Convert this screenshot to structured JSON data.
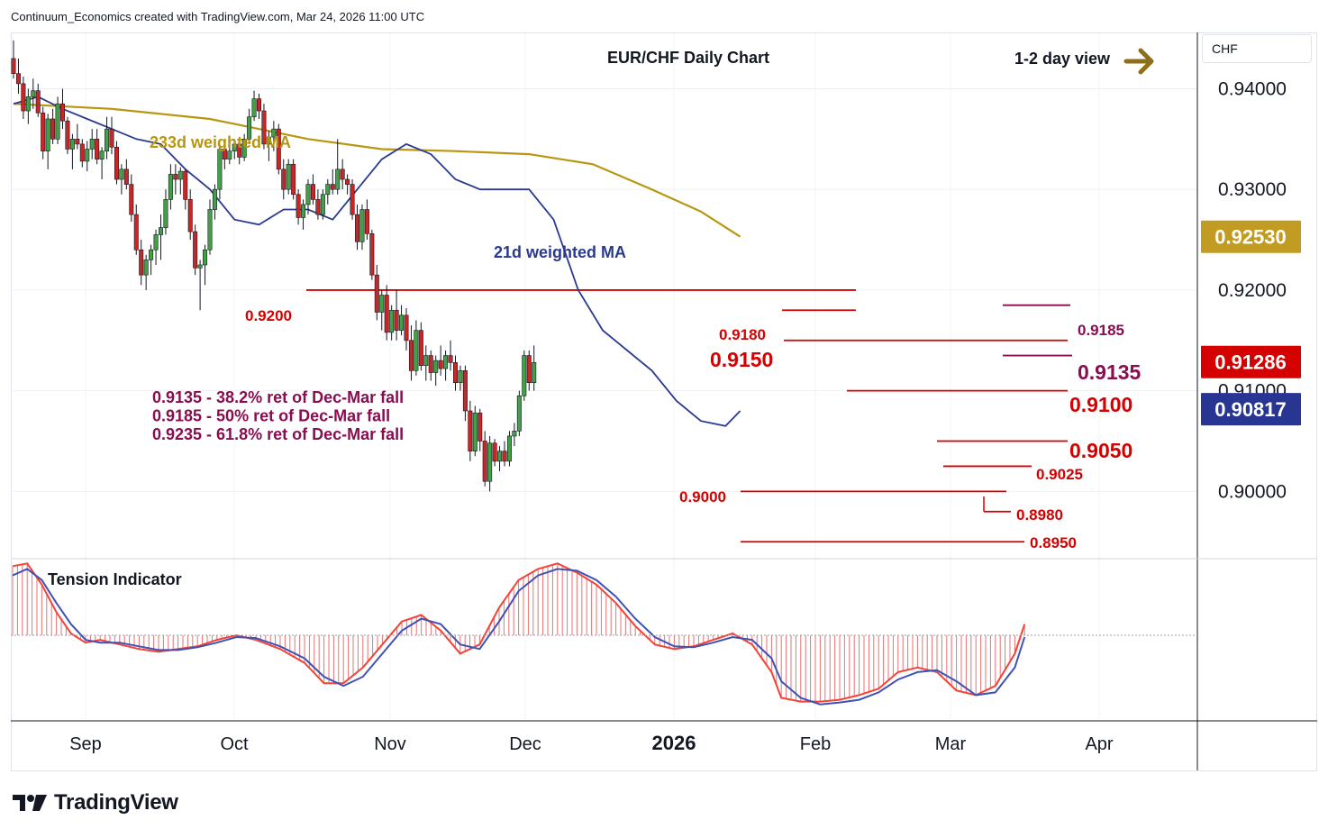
{
  "credit": "Continuum_Economics created with TradingView.com, Mar 24, 2026 11:00 UTC",
  "brand": "TradingView",
  "currency": "CHF",
  "chart_data": {
    "type": "candlestick",
    "title": "EUR/CHF Daily Chart",
    "view_label": "1-2 day view",
    "x_ticks": [
      "Sep",
      "Oct",
      "Nov",
      "Dec",
      "2026",
      "Feb",
      "Mar",
      "Apr"
    ],
    "y_ticks": [
      "0.94000",
      "0.93000",
      "0.92000",
      "0.91000",
      "0.90000"
    ],
    "ylim": [
      0.8935,
      0.9455
    ],
    "price_tags": [
      {
        "label": "0.92530",
        "value": 0.9253,
        "color": "#c19b22"
      },
      {
        "label": "0.91286",
        "value": 0.91286,
        "color": "#d50000"
      },
      {
        "label": "0.90817",
        "value": 0.90817,
        "color": "#283593"
      }
    ],
    "levels": [
      {
        "label": "0.9200",
        "value": 0.92
      },
      {
        "label": "0.9185",
        "value": 0.9185
      },
      {
        "label": "0.9180",
        "value": 0.918
      },
      {
        "label": "0.9150",
        "value": 0.915
      },
      {
        "label": "0.9135",
        "value": 0.9135
      },
      {
        "label": "0.9100",
        "value": 0.91
      },
      {
        "label": "0.9050",
        "value": 0.905
      },
      {
        "label": "0.9025",
        "value": 0.9025
      },
      {
        "label": "0.9000",
        "value": 0.9
      },
      {
        "label": "0.8980",
        "value": 0.898
      },
      {
        "label": "0.8950",
        "value": 0.895
      }
    ],
    "annotations": [
      "0.9135 - 38.2% ret of Dec-Mar fall",
      "0.9185 - 50% ret of Dec-Mar fall",
      "0.9235 - 61.8% ret of Dec-Mar fall"
    ],
    "series_labels": [
      "233d weighted MA",
      "21d weighted MA"
    ],
    "indicator_title": "Tension Indicator",
    "ma233": [
      [
        0,
        0.9385
      ],
      [
        20,
        0.938
      ],
      [
        40,
        0.937
      ],
      [
        60,
        0.935
      ],
      [
        75,
        0.934
      ],
      [
        90,
        0.9338
      ],
      [
        105,
        0.9335
      ],
      [
        118,
        0.9325
      ],
      [
        130,
        0.93
      ],
      [
        140,
        0.9278
      ],
      [
        148,
        0.9253
      ]
    ],
    "ma21": [
      [
        0,
        0.9385
      ],
      [
        5,
        0.9392
      ],
      [
        10,
        0.938
      ],
      [
        15,
        0.937
      ],
      [
        20,
        0.936
      ],
      [
        25,
        0.935
      ],
      [
        30,
        0.9345
      ],
      [
        35,
        0.932
      ],
      [
        40,
        0.93
      ],
      [
        45,
        0.927
      ],
      [
        50,
        0.9265
      ],
      [
        55,
        0.928
      ],
      [
        60,
        0.928
      ],
      [
        65,
        0.927
      ],
      [
        70,
        0.93
      ],
      [
        75,
        0.933
      ],
      [
        80,
        0.9345
      ],
      [
        85,
        0.9335
      ],
      [
        90,
        0.931
      ],
      [
        95,
        0.93
      ],
      [
        100,
        0.93
      ],
      [
        105,
        0.93
      ],
      [
        110,
        0.927
      ],
      [
        115,
        0.92
      ],
      [
        120,
        0.916
      ],
      [
        125,
        0.914
      ],
      [
        130,
        0.912
      ],
      [
        135,
        0.909
      ],
      [
        140,
        0.907
      ],
      [
        145,
        0.9065
      ],
      [
        148,
        0.908
      ]
    ],
    "candles": [
      [
        0.943,
        0.9448,
        0.941,
        0.9415
      ],
      [
        0.9415,
        0.943,
        0.9395,
        0.9405
      ],
      [
        0.9405,
        0.9412,
        0.937,
        0.9378
      ],
      [
        0.9378,
        0.94,
        0.9365,
        0.9392
      ],
      [
        0.9392,
        0.941,
        0.938,
        0.9398
      ],
      [
        0.9398,
        0.9405,
        0.9372,
        0.9376
      ],
      [
        0.9376,
        0.9382,
        0.933,
        0.9338
      ],
      [
        0.9338,
        0.9375,
        0.932,
        0.937
      ],
      [
        0.937,
        0.938,
        0.9345,
        0.935
      ],
      [
        0.935,
        0.9392,
        0.9345,
        0.9385
      ],
      [
        0.9385,
        0.94,
        0.936,
        0.9368
      ],
      [
        0.9368,
        0.9372,
        0.9335,
        0.934
      ],
      [
        0.934,
        0.9355,
        0.932,
        0.935
      ],
      [
        0.935,
        0.9365,
        0.934,
        0.9345
      ],
      [
        0.9345,
        0.935,
        0.9322,
        0.9328
      ],
      [
        0.9328,
        0.9348,
        0.9318,
        0.934
      ],
      [
        0.934,
        0.936,
        0.933,
        0.935
      ],
      [
        0.935,
        0.936,
        0.9325,
        0.933
      ],
      [
        0.933,
        0.9342,
        0.931,
        0.9338
      ],
      [
        0.9338,
        0.9372,
        0.933,
        0.936
      ],
      [
        0.936,
        0.9372,
        0.9335,
        0.9342
      ],
      [
        0.9342,
        0.9348,
        0.9305,
        0.931
      ],
      [
        0.931,
        0.9325,
        0.9295,
        0.932
      ],
      [
        0.932,
        0.933,
        0.93,
        0.9305
      ],
      [
        0.9305,
        0.9315,
        0.9268,
        0.9275
      ],
      [
        0.9275,
        0.9285,
        0.9235,
        0.924
      ],
      [
        0.924,
        0.925,
        0.9205,
        0.9215
      ],
      [
        0.9215,
        0.9235,
        0.92,
        0.923
      ],
      [
        0.923,
        0.9245,
        0.9215,
        0.924
      ],
      [
        0.924,
        0.926,
        0.9225,
        0.9255
      ],
      [
        0.9255,
        0.9275,
        0.923,
        0.9262
      ],
      [
        0.9262,
        0.93,
        0.9255,
        0.929
      ],
      [
        0.929,
        0.9325,
        0.928,
        0.9315
      ],
      [
        0.9315,
        0.9325,
        0.9295,
        0.931
      ],
      [
        0.931,
        0.9322,
        0.9295,
        0.9318
      ],
      [
        0.9318,
        0.932,
        0.928,
        0.929
      ],
      [
        0.929,
        0.93,
        0.925,
        0.9258
      ],
      [
        0.9258,
        0.9265,
        0.9215,
        0.9222
      ],
      [
        0.9222,
        0.923,
        0.918,
        0.9225
      ],
      [
        0.9225,
        0.9245,
        0.9205,
        0.924
      ],
      [
        0.924,
        0.929,
        0.9235,
        0.928
      ],
      [
        0.928,
        0.9305,
        0.927,
        0.93
      ],
      [
        0.93,
        0.9345,
        0.929,
        0.934
      ],
      [
        0.934,
        0.9348,
        0.932,
        0.933
      ],
      [
        0.933,
        0.9345,
        0.9325,
        0.9338
      ],
      [
        0.9338,
        0.935,
        0.933,
        0.9345
      ],
      [
        0.9345,
        0.9348,
        0.9325,
        0.9332
      ],
      [
        0.9332,
        0.9355,
        0.9328,
        0.935
      ],
      [
        0.935,
        0.938,
        0.9345,
        0.9372
      ],
      [
        0.9372,
        0.9398,
        0.9368,
        0.939
      ],
      [
        0.939,
        0.9395,
        0.937,
        0.9378
      ],
      [
        0.9378,
        0.9385,
        0.934,
        0.9345
      ],
      [
        0.9345,
        0.9358,
        0.9328,
        0.9352
      ],
      [
        0.9352,
        0.9368,
        0.9338,
        0.936
      ],
      [
        0.936,
        0.9365,
        0.9315,
        0.932
      ],
      [
        0.932,
        0.933,
        0.929,
        0.93
      ],
      [
        0.93,
        0.933,
        0.9295,
        0.9325
      ],
      [
        0.9325,
        0.933,
        0.929,
        0.9295
      ],
      [
        0.9295,
        0.93,
        0.9265,
        0.9272
      ],
      [
        0.9272,
        0.929,
        0.926,
        0.9285
      ],
      [
        0.9285,
        0.931,
        0.9275,
        0.9305
      ],
      [
        0.9305,
        0.9315,
        0.9285,
        0.929
      ],
      [
        0.929,
        0.93,
        0.927,
        0.9275
      ],
      [
        0.9275,
        0.93,
        0.927,
        0.9295
      ],
      [
        0.9295,
        0.931,
        0.9285,
        0.9305
      ],
      [
        0.9305,
        0.932,
        0.9295,
        0.93
      ],
      [
        0.93,
        0.935,
        0.9295,
        0.932
      ],
      [
        0.932,
        0.933,
        0.93,
        0.931
      ],
      [
        0.931,
        0.9315,
        0.9295,
        0.9305
      ],
      [
        0.9305,
        0.931,
        0.927,
        0.9275
      ],
      [
        0.9275,
        0.9285,
        0.924,
        0.9248
      ],
      [
        0.9248,
        0.9285,
        0.924,
        0.928
      ],
      [
        0.928,
        0.929,
        0.925,
        0.9256
      ],
      [
        0.9256,
        0.926,
        0.921,
        0.9215
      ],
      [
        0.9215,
        0.9225,
        0.917,
        0.9178
      ],
      [
        0.9178,
        0.92,
        0.916,
        0.9195
      ],
      [
        0.9195,
        0.9205,
        0.915,
        0.9158
      ],
      [
        0.9158,
        0.9185,
        0.915,
        0.918
      ],
      [
        0.918,
        0.92,
        0.915,
        0.916
      ],
      [
        0.916,
        0.9185,
        0.9155,
        0.9175
      ],
      [
        0.9175,
        0.9182,
        0.914,
        0.915
      ],
      [
        0.915,
        0.9165,
        0.911,
        0.912
      ],
      [
        0.912,
        0.917,
        0.9115,
        0.916
      ],
      [
        0.916,
        0.9168,
        0.912,
        0.9125
      ],
      [
        0.9125,
        0.9145,
        0.911,
        0.9135
      ],
      [
        0.9135,
        0.914,
        0.911,
        0.9118
      ],
      [
        0.9118,
        0.9135,
        0.9105,
        0.913
      ],
      [
        0.913,
        0.9145,
        0.9115,
        0.9122
      ],
      [
        0.9122,
        0.914,
        0.911,
        0.9135
      ],
      [
        0.9135,
        0.915,
        0.912,
        0.9128
      ],
      [
        0.9128,
        0.9135,
        0.91,
        0.9108
      ],
      [
        0.9108,
        0.9125,
        0.91,
        0.912
      ],
      [
        0.912,
        0.9125,
        0.907,
        0.908
      ],
      [
        0.908,
        0.909,
        0.903,
        0.904
      ],
      [
        0.904,
        0.9085,
        0.9035,
        0.9078
      ],
      [
        0.9078,
        0.9082,
        0.904,
        0.905
      ],
      [
        0.905,
        0.906,
        0.9005,
        0.901
      ],
      [
        0.901,
        0.9055,
        0.9,
        0.9048
      ],
      [
        0.9048,
        0.9052,
        0.9025,
        0.903
      ],
      [
        0.903,
        0.9045,
        0.902,
        0.904
      ],
      [
        0.904,
        0.905,
        0.9025,
        0.903
      ],
      [
        0.903,
        0.906,
        0.9025,
        0.9055
      ],
      [
        0.9055,
        0.9068,
        0.9045,
        0.906
      ],
      [
        0.906,
        0.91,
        0.9055,
        0.9095
      ],
      [
        0.9095,
        0.914,
        0.909,
        0.9135
      ],
      [
        0.9135,
        0.914,
        0.91,
        0.9108
      ],
      [
        0.9108,
        0.9145,
        0.91,
        0.9128
      ]
    ],
    "tension_ylim": [
      -0.9,
      0.9
    ],
    "tension_red": [
      [
        0,
        0.75
      ],
      [
        3,
        0.78
      ],
      [
        6,
        0.55
      ],
      [
        9,
        0.25
      ],
      [
        12,
        0.02
      ],
      [
        15,
        -0.08
      ],
      [
        18,
        -0.05
      ],
      [
        22,
        -0.1
      ],
      [
        26,
        -0.15
      ],
      [
        30,
        -0.18
      ],
      [
        34,
        -0.15
      ],
      [
        38,
        -0.12
      ],
      [
        42,
        -0.05
      ],
      [
        46,
        0.0
      ],
      [
        50,
        -0.05
      ],
      [
        55,
        -0.15
      ],
      [
        60,
        -0.3
      ],
      [
        64,
        -0.52
      ],
      [
        68,
        -0.52
      ],
      [
        72,
        -0.35
      ],
      [
        76,
        -0.1
      ],
      [
        80,
        0.15
      ],
      [
        84,
        0.22
      ],
      [
        88,
        0.05
      ],
      [
        92,
        -0.2
      ],
      [
        96,
        -0.1
      ],
      [
        100,
        0.3
      ],
      [
        104,
        0.6
      ],
      [
        108,
        0.72
      ],
      [
        112,
        0.78
      ],
      [
        116,
        0.68
      ],
      [
        120,
        0.55
      ],
      [
        124,
        0.35
      ],
      [
        128,
        0.1
      ],
      [
        132,
        -0.1
      ],
      [
        136,
        -0.15
      ],
      [
        140,
        -0.12
      ],
      [
        144,
        -0.05
      ],
      [
        148,
        0.02
      ],
      [
        152,
        -0.1
      ],
      [
        156,
        -0.4
      ],
      [
        158,
        -0.68
      ],
      [
        162,
        -0.72
      ],
      [
        166,
        -0.72
      ],
      [
        170,
        -0.7
      ],
      [
        174,
        -0.65
      ],
      [
        178,
        -0.58
      ],
      [
        182,
        -0.4
      ],
      [
        186,
        -0.35
      ],
      [
        190,
        -0.4
      ],
      [
        194,
        -0.6
      ],
      [
        198,
        -0.65
      ],
      [
        202,
        -0.55
      ],
      [
        206,
        -0.2
      ],
      [
        208,
        0.12
      ]
    ],
    "tension_blue": [
      [
        0,
        0.65
      ],
      [
        3,
        0.72
      ],
      [
        6,
        0.6
      ],
      [
        9,
        0.35
      ],
      [
        12,
        0.12
      ],
      [
        15,
        -0.05
      ],
      [
        18,
        -0.08
      ],
      [
        22,
        -0.08
      ],
      [
        26,
        -0.12
      ],
      [
        30,
        -0.16
      ],
      [
        34,
        -0.16
      ],
      [
        38,
        -0.13
      ],
      [
        42,
        -0.08
      ],
      [
        46,
        -0.02
      ],
      [
        50,
        -0.03
      ],
      [
        55,
        -0.12
      ],
      [
        60,
        -0.25
      ],
      [
        64,
        -0.45
      ],
      [
        68,
        -0.55
      ],
      [
        72,
        -0.45
      ],
      [
        76,
        -0.2
      ],
      [
        80,
        0.05
      ],
      [
        84,
        0.18
      ],
      [
        88,
        0.12
      ],
      [
        92,
        -0.1
      ],
      [
        96,
        -0.15
      ],
      [
        100,
        0.15
      ],
      [
        104,
        0.48
      ],
      [
        108,
        0.65
      ],
      [
        112,
        0.72
      ],
      [
        116,
        0.7
      ],
      [
        120,
        0.6
      ],
      [
        124,
        0.42
      ],
      [
        128,
        0.18
      ],
      [
        132,
        -0.02
      ],
      [
        136,
        -0.12
      ],
      [
        140,
        -0.13
      ],
      [
        144,
        -0.08
      ],
      [
        148,
        -0.02
      ],
      [
        152,
        -0.05
      ],
      [
        156,
        -0.25
      ],
      [
        158,
        -0.5
      ],
      [
        162,
        -0.68
      ],
      [
        166,
        -0.75
      ],
      [
        170,
        -0.73
      ],
      [
        174,
        -0.7
      ],
      [
        178,
        -0.62
      ],
      [
        182,
        -0.48
      ],
      [
        186,
        -0.4
      ],
      [
        190,
        -0.38
      ],
      [
        194,
        -0.5
      ],
      [
        198,
        -0.65
      ],
      [
        202,
        -0.62
      ],
      [
        206,
        -0.35
      ],
      [
        208,
        -0.02
      ]
    ]
  }
}
